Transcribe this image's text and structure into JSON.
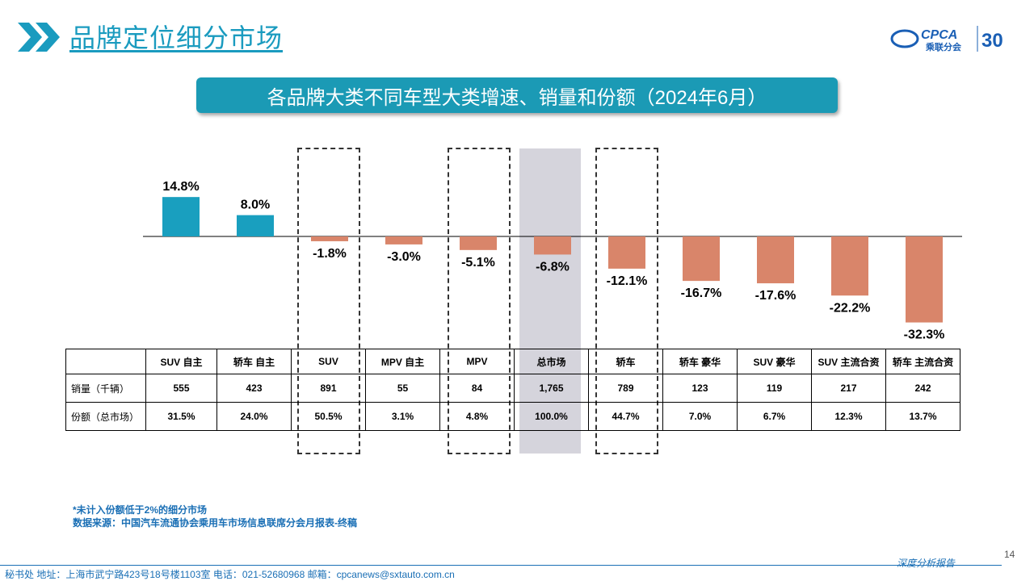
{
  "header": {
    "title": "品牌定位细分市场",
    "logo_text": "CPCA",
    "logo_subtext": "乘联分会",
    "anniversary": "30"
  },
  "subtitle": "各品牌大类不同车型大类增速、销量和份额（2024年6月）",
  "colors": {
    "accent": "#1b9ab5",
    "positive_bar": "#199fbf",
    "negative_bar": "#d9856a",
    "highlight_column": "#d5d4dc",
    "note_text": "#1a6fb5"
  },
  "chart_data": {
    "type": "bar",
    "categories": [
      "SUV 自主",
      "轿车 自主",
      "SUV",
      "MPV 自主",
      "MPV",
      "总市场",
      "轿车",
      "轿车 豪华",
      "SUV 豪华",
      "SUV 主流合资",
      "轿车 主流合资"
    ],
    "values": [
      14.8,
      8.0,
      -1.8,
      -3.0,
      -5.1,
      -6.8,
      -12.1,
      -16.7,
      -17.6,
      -22.2,
      -32.3
    ],
    "data_labels": [
      "14.8%",
      "8.0%",
      "-1.8%",
      "-3.0%",
      "-5.1%",
      "-6.8%",
      "-12.1%",
      "-16.7%",
      "-17.6%",
      "-22.2%",
      "-32.3%"
    ],
    "unit": "%",
    "highlighted_dashed": [
      "SUV",
      "MPV",
      "轿车"
    ],
    "highlighted_shaded": [
      "总市场"
    ],
    "grid": false,
    "legend": "none"
  },
  "table": {
    "corner": "",
    "rows": [
      {
        "label": "销量（千辆）",
        "values": [
          "555",
          "423",
          "891",
          "55",
          "84",
          "1,765",
          "789",
          "123",
          "119",
          "217",
          "242"
        ]
      },
      {
        "label": "份额（总市场）",
        "values": [
          "31.5%",
          "24.0%",
          "50.5%",
          "3.1%",
          "4.8%",
          "100.0%",
          "44.7%",
          "7.0%",
          "6.7%",
          "12.3%",
          "13.7%"
        ]
      }
    ]
  },
  "notes": {
    "line1": "*未计入份额低于2%的细分市场",
    "line2": "数据来源：中国汽车流通协会乘用车市场信息联席分会月报表-终稿"
  },
  "footer": {
    "text": "秘书处    地址：上海市武宁路423号18号楼1103室    电话：021-52680968    邮箱：cpcanews@sxtauto.com.cn",
    "page_number": "14",
    "report_tag": "深度分析报告"
  }
}
